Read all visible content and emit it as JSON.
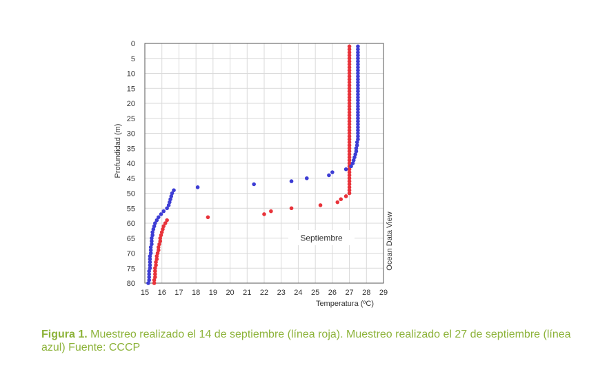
{
  "chart_data": {
    "type": "scatter",
    "xlabel": "Temperatura (ºC)",
    "ylabel": "Profundidad (m)",
    "xlim": [
      15,
      29
    ],
    "ylim": [
      80,
      0
    ],
    "xticks": [
      15,
      16,
      17,
      18,
      19,
      20,
      21,
      22,
      23,
      24,
      25,
      26,
      27,
      28,
      29
    ],
    "yticks": [
      0,
      5,
      10,
      15,
      20,
      25,
      30,
      35,
      40,
      45,
      50,
      55,
      60,
      65,
      70,
      75,
      80
    ],
    "grid": true,
    "annotation": "Septiembre",
    "side_text": "Ocean Data View",
    "series": [
      {
        "color": "#e8333a",
        "points": [
          [
            27.0,
            1
          ],
          [
            27.0,
            2
          ],
          [
            27.0,
            3
          ],
          [
            27.0,
            4
          ],
          [
            27.0,
            5
          ],
          [
            27.0,
            6
          ],
          [
            27.0,
            7
          ],
          [
            27.0,
            8
          ],
          [
            27.0,
            9
          ],
          [
            27.0,
            10
          ],
          [
            27.0,
            11
          ],
          [
            27.0,
            12
          ],
          [
            27.0,
            13
          ],
          [
            27.0,
            14
          ],
          [
            27.0,
            15
          ],
          [
            27.0,
            16
          ],
          [
            27.0,
            17
          ],
          [
            27.0,
            18
          ],
          [
            27.0,
            19
          ],
          [
            27.0,
            20
          ],
          [
            27.0,
            21
          ],
          [
            27.0,
            22
          ],
          [
            27.0,
            23
          ],
          [
            27.0,
            24
          ],
          [
            27.0,
            25
          ],
          [
            27.0,
            26
          ],
          [
            27.0,
            27
          ],
          [
            27.0,
            28
          ],
          [
            27.0,
            29
          ],
          [
            27.0,
            30
          ],
          [
            27.0,
            31
          ],
          [
            27.0,
            32
          ],
          [
            27.0,
            33
          ],
          [
            27.0,
            34
          ],
          [
            27.0,
            35
          ],
          [
            27.0,
            36
          ],
          [
            27.0,
            37
          ],
          [
            27.0,
            38
          ],
          [
            27.0,
            39
          ],
          [
            27.0,
            40
          ],
          [
            27.0,
            41
          ],
          [
            27.0,
            42
          ],
          [
            27.0,
            43
          ],
          [
            27.0,
            44
          ],
          [
            27.0,
            45
          ],
          [
            27.0,
            46
          ],
          [
            27.0,
            47
          ],
          [
            27.0,
            48
          ],
          [
            27.0,
            49
          ],
          [
            27.0,
            50
          ],
          [
            26.8,
            51
          ],
          [
            26.5,
            52
          ],
          [
            26.3,
            53
          ],
          [
            25.3,
            54
          ],
          [
            23.6,
            55
          ],
          [
            22.4,
            56
          ],
          [
            22.0,
            57
          ],
          [
            18.7,
            58
          ],
          [
            16.3,
            59
          ],
          [
            16.2,
            60
          ],
          [
            16.1,
            61
          ],
          [
            16.05,
            62
          ],
          [
            16.0,
            63
          ],
          [
            15.95,
            64
          ],
          [
            15.9,
            65
          ],
          [
            15.9,
            66
          ],
          [
            15.85,
            67
          ],
          [
            15.8,
            68
          ],
          [
            15.8,
            69
          ],
          [
            15.75,
            70
          ],
          [
            15.7,
            71
          ],
          [
            15.7,
            72
          ],
          [
            15.65,
            73
          ],
          [
            15.65,
            74
          ],
          [
            15.6,
            75
          ],
          [
            15.6,
            76
          ],
          [
            15.6,
            77
          ],
          [
            15.6,
            78
          ],
          [
            15.55,
            79
          ],
          [
            15.55,
            80
          ]
        ]
      },
      {
        "color": "#3d3dd4",
        "points": [
          [
            27.5,
            1
          ],
          [
            27.5,
            2
          ],
          [
            27.5,
            3
          ],
          [
            27.5,
            4
          ],
          [
            27.5,
            5
          ],
          [
            27.5,
            6
          ],
          [
            27.5,
            7
          ],
          [
            27.5,
            8
          ],
          [
            27.5,
            9
          ],
          [
            27.5,
            10
          ],
          [
            27.5,
            11
          ],
          [
            27.5,
            12
          ],
          [
            27.5,
            13
          ],
          [
            27.5,
            14
          ],
          [
            27.5,
            15
          ],
          [
            27.5,
            16
          ],
          [
            27.5,
            17
          ],
          [
            27.5,
            18
          ],
          [
            27.5,
            19
          ],
          [
            27.5,
            20
          ],
          [
            27.5,
            21
          ],
          [
            27.5,
            22
          ],
          [
            27.5,
            23
          ],
          [
            27.5,
            24
          ],
          [
            27.5,
            25
          ],
          [
            27.5,
            26
          ],
          [
            27.5,
            27
          ],
          [
            27.5,
            28
          ],
          [
            27.5,
            29
          ],
          [
            27.5,
            30
          ],
          [
            27.5,
            31
          ],
          [
            27.5,
            32
          ],
          [
            27.45,
            33
          ],
          [
            27.45,
            34
          ],
          [
            27.4,
            35
          ],
          [
            27.4,
            36
          ],
          [
            27.35,
            37
          ],
          [
            27.3,
            38
          ],
          [
            27.25,
            39
          ],
          [
            27.2,
            40
          ],
          [
            27.1,
            41
          ],
          [
            26.8,
            42
          ],
          [
            26.0,
            43
          ],
          [
            25.8,
            44
          ],
          [
            24.5,
            45
          ],
          [
            23.6,
            46
          ],
          [
            21.4,
            47
          ],
          [
            18.1,
            48
          ],
          [
            16.7,
            49
          ],
          [
            16.6,
            50
          ],
          [
            16.55,
            51
          ],
          [
            16.5,
            52
          ],
          [
            16.45,
            53
          ],
          [
            16.4,
            54
          ],
          [
            16.3,
            55
          ],
          [
            16.1,
            56
          ],
          [
            15.95,
            57
          ],
          [
            15.8,
            58
          ],
          [
            15.7,
            59
          ],
          [
            15.6,
            60
          ],
          [
            15.55,
            61
          ],
          [
            15.5,
            62
          ],
          [
            15.45,
            63
          ],
          [
            15.45,
            64
          ],
          [
            15.4,
            65
          ],
          [
            15.4,
            66
          ],
          [
            15.4,
            67
          ],
          [
            15.35,
            68
          ],
          [
            15.35,
            69
          ],
          [
            15.35,
            70
          ],
          [
            15.3,
            71
          ],
          [
            15.3,
            72
          ],
          [
            15.3,
            73
          ],
          [
            15.3,
            74
          ],
          [
            15.3,
            75
          ],
          [
            15.25,
            76
          ],
          [
            15.25,
            77
          ],
          [
            15.25,
            78
          ],
          [
            15.25,
            79
          ],
          [
            15.2,
            80
          ]
        ]
      }
    ]
  },
  "caption": {
    "lead": "Figura 1.",
    "text": " Muestreo realizado el 14 de septiembre (línea roja). Muestreo realizado el 27 de septiembre (línea azul) Fuente: CCCP"
  }
}
